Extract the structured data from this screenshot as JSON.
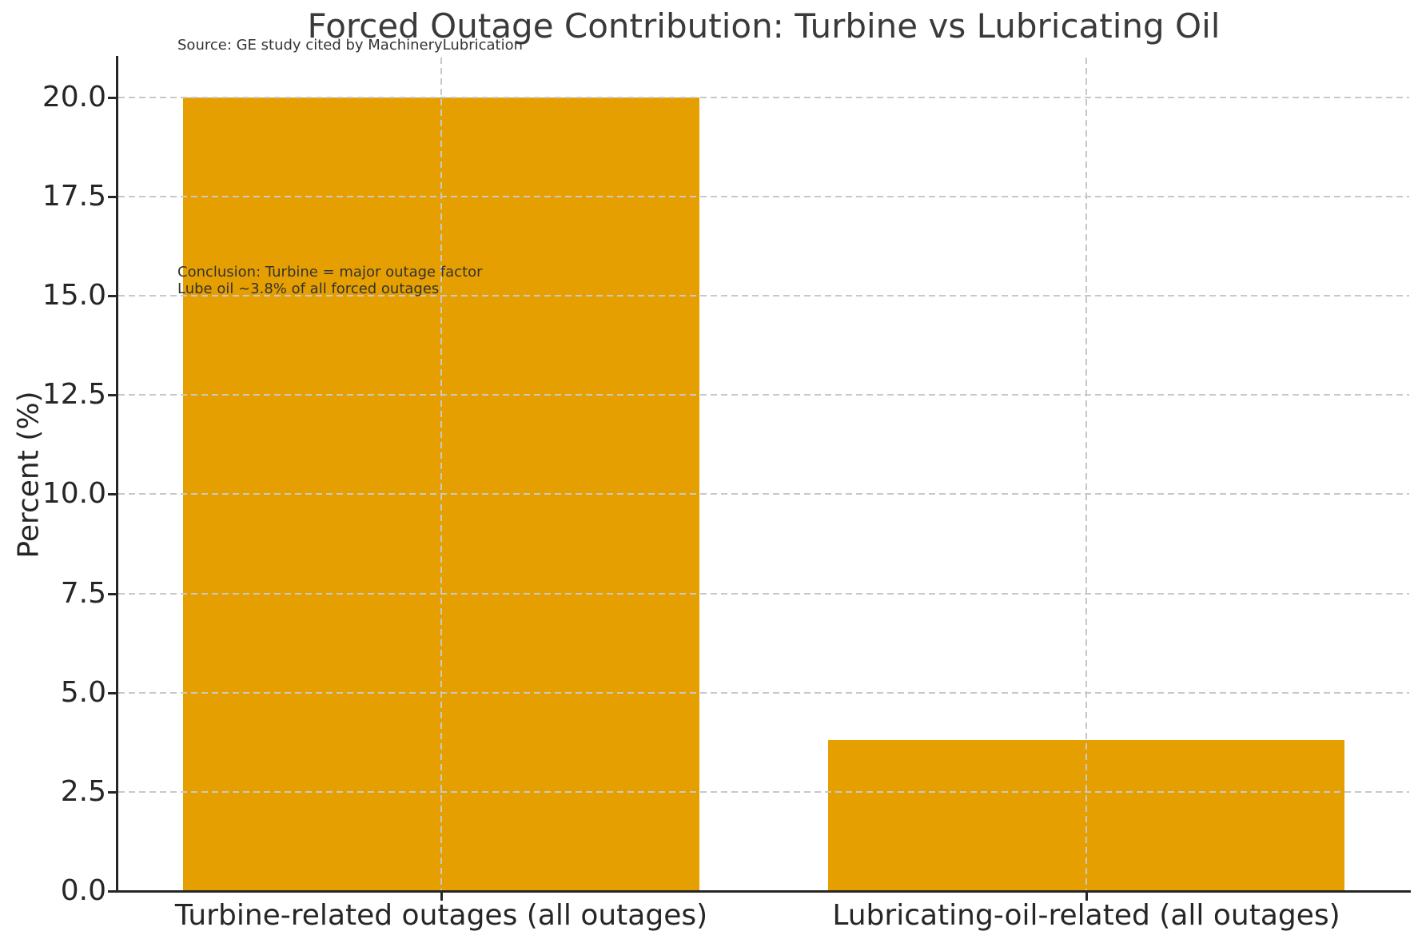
{
  "chart_data": {
    "type": "bar",
    "title": "Forced Outage Contribution: Turbine vs Lubricating Oil",
    "source_note": "Source: GE study cited by MachineryLubrication",
    "annotation": {
      "line1": "Conclusion: Turbine = major outage factor",
      "line2": "Lube oil ~3.8% of all forced outages"
    },
    "categories": [
      "Turbine-related outages (all outages)",
      "Lubricating-oil-related (all outages)"
    ],
    "values": [
      20.0,
      3.8
    ],
    "xlabel": "",
    "ylabel": "Percent (%)",
    "yticks": [
      0.0,
      2.5,
      5.0,
      7.5,
      10.0,
      12.5,
      15.0,
      17.5,
      20.0
    ],
    "ylim": [
      0,
      21
    ],
    "grid": true,
    "grid_style": "dashed",
    "legend": null,
    "colors": {
      "bar": "#E69F00",
      "grid": "#c8c8c8",
      "spine": "#262626",
      "title_text": "#3a3a3a",
      "tick_text": "#262626",
      "note_text": "#333333",
      "background": "#ffffff"
    }
  }
}
